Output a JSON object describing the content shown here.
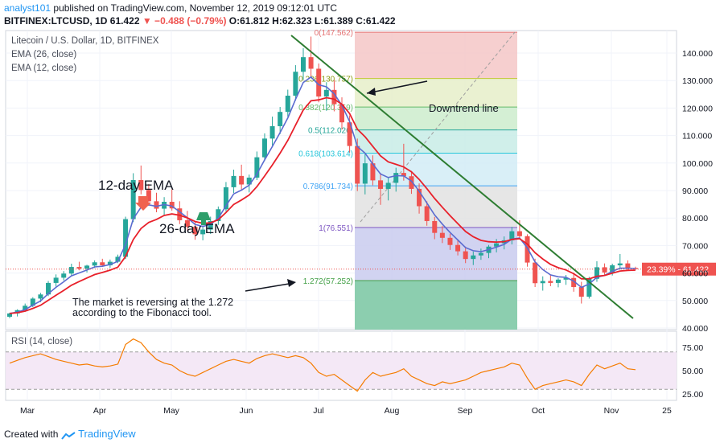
{
  "header": {
    "line1_user": "analyst101",
    "line1_rest": "published on TradingView.com, November 12, 2019 09:12:01 UTC",
    "line2_pre": "BITFINEX:LTCUSD, 1D",
    "line2_last": "61.422",
    "line2_change": "▼ −0.488 (−0.79%)",
    "line2_ohlc": "O:61.812  H:62.323  L:61.389  C:61.422"
  },
  "legend": {
    "title": "Litecoin / U.S. Dollar, 1D, BITFINEX",
    "ema26": "EMA (26, close)",
    "ema12": "EMA (12, close)",
    "rsi": "RSI (14, close)"
  },
  "annotations": {
    "ema12": "12-day EMA",
    "ema26": "26-day EMA",
    "downtrend": "Downtrend line",
    "reversal_l1": "The market is reversing at the 1.272",
    "reversal_l2": "according to the Fibonacci tool."
  },
  "footer": {
    "created": "Created with",
    "brand": "TradingView"
  },
  "colors": {
    "up": "#26a69a",
    "down": "#ef5350",
    "ema12": "#5a6bd0",
    "ema26": "#e8202a",
    "trend": "#2e7d32",
    "rsi": "#f57c00",
    "price_tag": "#ef5350"
  },
  "chart_data": {
    "type": "line",
    "title": "Litecoin / U.S. Dollar, 1D, BITFINEX",
    "price_axis": {
      "ticks": [
        "140.000",
        "130.000",
        "120.000",
        "110.000",
        "100.000",
        "90.000",
        "80.000",
        "70.000",
        "60.000",
        "50.000",
        "40.000"
      ],
      "ylim": [
        40,
        147
      ]
    },
    "time_axis": {
      "ticks": [
        "Mar",
        "Apr",
        "May",
        "Jun",
        "Jul",
        "Aug",
        "Sep",
        "Oct",
        "Nov",
        "25"
      ]
    },
    "rsi_axis": {
      "ticks": [
        "75.00",
        "50.00",
        "25.00"
      ],
      "ylim": [
        20,
        80
      ],
      "band": [
        30,
        70
      ]
    },
    "last_price": "61.422",
    "last_change_pct": "23.39%",
    "fibonacci": [
      {
        "level": "0",
        "label": "0(147.562)",
        "value": 147.562,
        "fill": "#f4c7c7"
      },
      {
        "level": "0.236",
        "label": "0.236(130.757)",
        "value": 130.757,
        "fill": "#e6efc9"
      },
      {
        "level": "0.382",
        "label": "0.382(120.359)",
        "value": 120.359,
        "fill": "#cdeccd"
      },
      {
        "level": "0.5",
        "label": "0.5(112.026)",
        "value": 112.026,
        "fill": "#c8ece6"
      },
      {
        "level": "0.618",
        "label": "0.618(103.614)",
        "value": 103.614,
        "fill": "#d2ecf6"
      },
      {
        "level": "0.786",
        "label": "0.786(91.734)",
        "value": 91.734,
        "fill": "#e2e2e2"
      },
      {
        "level": "1",
        "label": "1(76.551)",
        "value": 76.551,
        "fill": "#c9cbef"
      },
      {
        "level": "1.272",
        "label": "1.272(57.252)",
        "value": 57.252,
        "fill": "#7fc9a6"
      }
    ],
    "ohlc_sample": [
      [
        44.1,
        45.6,
        43.6,
        45.3
      ],
      [
        45.3,
        46.8,
        44.2,
        46.5
      ],
      [
        46.5,
        48.9,
        45.9,
        48.1
      ],
      [
        48.1,
        51.2,
        47.6,
        50.7
      ],
      [
        50.7,
        52.8,
        49.4,
        52.2
      ],
      [
        52.2,
        57.1,
        51.6,
        56.4
      ],
      [
        56.4,
        59.5,
        55.1,
        58.3
      ],
      [
        58.3,
        60.7,
        57.3,
        59.8
      ],
      [
        59.8,
        63.4,
        58.9,
        62.2
      ],
      [
        62.2,
        64.1,
        61.0,
        61.6
      ],
      [
        61.6,
        63.0,
        60.2,
        62.7
      ],
      [
        62.7,
        64.6,
        61.8,
        63.9
      ],
      [
        63.9,
        65.2,
        62.3,
        62.8
      ],
      [
        62.8,
        64.9,
        61.9,
        64.1
      ],
      [
        64.1,
        66.7,
        63.6,
        65.9
      ],
      [
        65.9,
        80.5,
        65.1,
        79.6
      ],
      [
        79.6,
        96.3,
        78.5,
        93.8
      ],
      [
        93.8,
        99.1,
        88.6,
        90.2
      ],
      [
        90.2,
        92.4,
        84.5,
        86.1
      ],
      [
        86.1,
        89.2,
        82.1,
        83.4
      ],
      [
        83.4,
        87.6,
        80.9,
        85.9
      ],
      [
        85.9,
        90.4,
        82.7,
        83.5
      ],
      [
        83.5,
        86.1,
        77.8,
        79.2
      ],
      [
        79.2,
        82.6,
        75.4,
        76.8
      ],
      [
        76.8,
        78.9,
        72.1,
        74.1
      ],
      [
        74.1,
        77.3,
        71.9,
        75.8
      ],
      [
        75.8,
        80.5,
        74.2,
        78.9
      ],
      [
        78.9,
        84.2,
        77.5,
        83.2
      ],
      [
        83.2,
        93.1,
        82.4,
        91.2
      ],
      [
        91.2,
        97.6,
        89.1,
        95.3
      ],
      [
        95.3,
        99.4,
        90.4,
        92.2
      ],
      [
        92.2,
        95.8,
        89.3,
        94.7
      ],
      [
        94.7,
        104.2,
        93.8,
        102.1
      ],
      [
        102.1,
        110.8,
        100.7,
        108.9
      ],
      [
        108.9,
        116.9,
        106.3,
        113.4
      ],
      [
        113.4,
        120.4,
        110.5,
        118.6
      ],
      [
        118.6,
        126.7,
        116.9,
        124.5
      ],
      [
        124.5,
        135.6,
        122.7,
        133.2
      ],
      [
        133.2,
        141.8,
        130.2,
        138.5
      ],
      [
        138.5,
        146.0,
        131.4,
        134.3
      ],
      [
        134.3,
        136.2,
        122.1,
        124.2
      ],
      [
        124.2,
        129.4,
        119.0,
        126.6
      ],
      [
        126.6,
        130.2,
        118.8,
        121.4
      ],
      [
        121.4,
        123.9,
        112.2,
        114.8
      ],
      [
        114.8,
        117.3,
        103.8,
        106.2
      ],
      [
        106.2,
        108.9,
        89.8,
        92.5
      ],
      [
        92.5,
        103.3,
        88.6,
        99.9
      ],
      [
        99.9,
        102.8,
        91.9,
        93.7
      ],
      [
        93.7,
        96.4,
        84.8,
        90.6
      ],
      [
        90.6,
        94.7,
        86.4,
        92.8
      ],
      [
        92.8,
        98.3,
        89.6,
        96.4
      ],
      [
        96.4,
        107.0,
        93.6,
        95.2
      ],
      [
        95.2,
        97.1,
        88.8,
        90.6
      ],
      [
        90.6,
        92.6,
        81.6,
        84.3
      ],
      [
        84.3,
        86.1,
        77.2,
        78.9
      ],
      [
        78.9,
        80.4,
        72.3,
        74.6
      ],
      [
        74.6,
        77.1,
        70.9,
        72.8
      ],
      [
        72.8,
        74.3,
        68.4,
        70.2
      ],
      [
        70.2,
        72.1,
        66.4,
        67.9
      ],
      [
        67.9,
        69.6,
        63.6,
        65.1
      ],
      [
        65.1,
        67.8,
        62.9,
        66.4
      ],
      [
        66.4,
        68.9,
        64.8,
        67.3
      ],
      [
        67.3,
        70.2,
        65.4,
        69.6
      ],
      [
        69.6,
        72.4,
        67.5,
        70.8
      ],
      [
        70.8,
        73.3,
        68.6,
        71.9
      ],
      [
        71.9,
        76.8,
        70.4,
        75.2
      ],
      [
        75.2,
        79.2,
        72.8,
        73.4
      ],
      [
        73.4,
        74.1,
        62.3,
        63.8
      ],
      [
        63.8,
        65.2,
        54.9,
        56.3
      ],
      [
        56.3,
        58.8,
        53.6,
        57.1
      ],
      [
        57.1,
        59.4,
        55.2,
        56.4
      ],
      [
        56.4,
        58.1,
        54.8,
        57.6
      ],
      [
        57.6,
        59.3,
        55.7,
        58.2
      ],
      [
        58.2,
        60.1,
        53.2,
        54.9
      ],
      [
        54.9,
        56.8,
        48.9,
        51.4
      ],
      [
        51.4,
        58.6,
        50.7,
        57.9
      ],
      [
        57.9,
        64.3,
        56.8,
        62.1
      ],
      [
        62.1,
        63.5,
        58.9,
        60.2
      ],
      [
        60.2,
        63.4,
        59.1,
        62.8
      ],
      [
        62.8,
        66.9,
        61.2,
        63.5
      ],
      [
        63.5,
        64.6,
        60.8,
        61.8
      ],
      [
        61.8,
        62.3,
        61.4,
        61.4
      ]
    ],
    "rsi_sample": [
      58,
      61,
      64,
      66,
      68,
      65,
      62,
      60,
      58,
      56,
      57,
      55,
      54,
      55,
      57,
      78,
      84,
      80,
      70,
      62,
      58,
      56,
      50,
      46,
      44,
      48,
      52,
      56,
      60,
      62,
      60,
      58,
      63,
      66,
      68,
      66,
      64,
      66,
      64,
      58,
      48,
      44,
      46,
      40,
      34,
      28,
      40,
      48,
      44,
      46,
      48,
      52,
      44,
      40,
      36,
      34,
      38,
      36,
      38,
      40,
      44,
      48,
      50,
      52,
      54,
      58,
      56,
      42,
      30,
      34,
      36,
      38,
      40,
      38,
      34,
      46,
      56,
      52,
      55,
      58,
      52,
      51
    ]
  }
}
